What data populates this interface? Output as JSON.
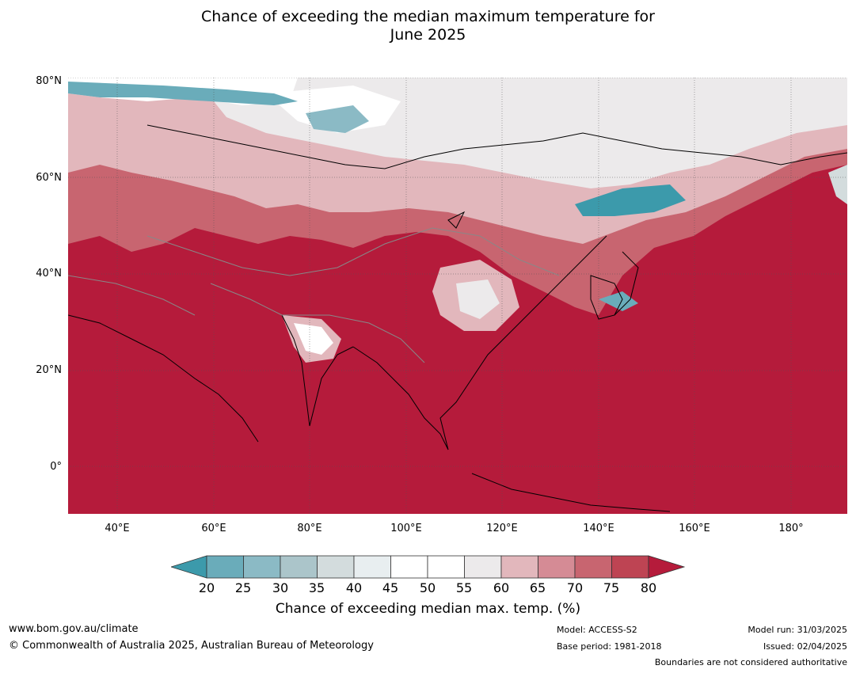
{
  "title_line1": "Chance of exceeding the median maximum temperature for",
  "title_line2": "June 2025",
  "lat_labels": [
    "80°N",
    "60°N",
    "40°N",
    "20°N",
    "0°"
  ],
  "lon_labels": [
    "40°E",
    "60°E",
    "80°E",
    "100°E",
    "120°E",
    "140°E",
    "160°E",
    "180°"
  ],
  "legend": {
    "ticks": [
      "20",
      "25",
      "30",
      "35",
      "40",
      "45",
      "50",
      "55",
      "60",
      "65",
      "70",
      "75",
      "80"
    ],
    "colors": [
      "#3c9aab",
      "#6aacba",
      "#8bbac5",
      "#abc5ca",
      "#d3dcdd",
      "#e8eef0",
      "#ffffff",
      "#ffffff",
      "#eceaeb",
      "#e2b7bc",
      "#d58b95",
      "#c86570",
      "#be4453",
      "#b51b3b"
    ],
    "title": "Chance of exceeding median max. temp. (%)"
  },
  "footer": {
    "url": "www.bom.gov.au/climate",
    "copyright": "© Commonwealth of Australia 2025, Australian Bureau of Meteorology",
    "model": "Model: ACCESS-S2",
    "base_period": "Base period: 1981-2018",
    "model_run": "Model run: 31/03/2025",
    "issued": "Issued: 02/04/2025",
    "disclaimer": "Boundaries are not considered authoritative"
  },
  "colors": {
    "hot": "#b51b3b",
    "warm": "#c86570",
    "mild": "#e2b7bc",
    "neutral": "#eceaeb",
    "cool": "#3c9aab"
  }
}
